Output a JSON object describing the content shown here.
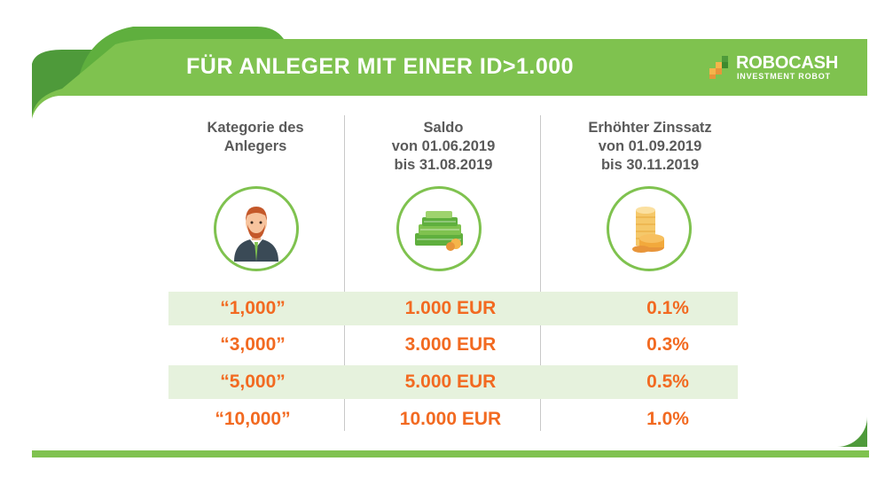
{
  "banner": {
    "title": "FÜR ANLEGER MIT EINER ID>1.000"
  },
  "logo": {
    "name": "ROBOCASH",
    "tagline": "INVESTMENT ROBOT"
  },
  "columns": [
    {
      "header_line1": "Kategorie des",
      "header_line2": "Anlegers",
      "header_line3": "",
      "icon": "investor-avatar-icon"
    },
    {
      "header_line1": "Saldo",
      "header_line2": "von 01.06.2019",
      "header_line3": "bis 31.08.2019",
      "icon": "money-stack-icon"
    },
    {
      "header_line1": "Erhöhter Zinssatz",
      "header_line2": "von 01.09.2019",
      "header_line3": "bis 30.11.2019",
      "icon": "coins-stack-icon"
    }
  ],
  "rows": [
    {
      "category": "“1,000”",
      "balance": "1.000 EUR",
      "rate": "0.1%"
    },
    {
      "category": "“3,000”",
      "balance": "3.000 EUR",
      "rate": "0.3%"
    },
    {
      "category": "“5,000”",
      "balance": "5.000 EUR",
      "rate": "0.5%"
    },
    {
      "category": "“10,000”",
      "balance": "10.000 EUR",
      "rate": "1.0%"
    }
  ],
  "colors": {
    "green_dark": "#4e9a3a",
    "green_main": "#7fc24f",
    "green_light": "#9fd36e",
    "orange": "#f26a21",
    "row_shade": "#e6f2dd",
    "header_text": "#5a5a5a"
  }
}
